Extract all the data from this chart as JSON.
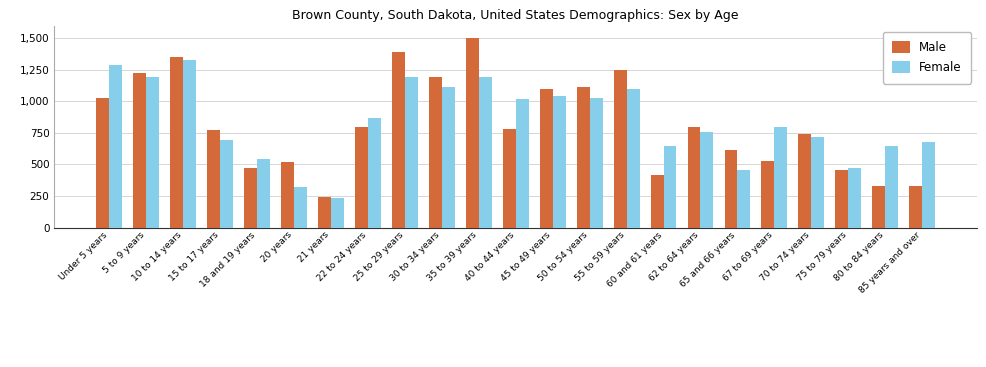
{
  "title": "Brown County, South Dakota, United States Demographics: Sex by Age",
  "categories": [
    "Under 5 years",
    "5 to 9 years",
    "10 to 14 years",
    "15 to 17 years",
    "18 and 19 years",
    "20 years",
    "21 years",
    "22 to 24 years",
    "25 to 29 years",
    "30 to 34 years",
    "35 to 39 years",
    "40 to 44 years",
    "45 to 49 years",
    "50 to 54 years",
    "55 to 59 years",
    "60 and 61 years",
    "62 to 64 years",
    "65 and 66 years",
    "67 to 69 years",
    "70 to 74 years",
    "75 to 79 years",
    "80 to 84 years",
    "85 years and over"
  ],
  "male": [
    1025,
    1225,
    1355,
    775,
    470,
    520,
    245,
    800,
    1390,
    1190,
    1500,
    785,
    1100,
    1115,
    1245,
    415,
    795,
    615,
    530,
    745,
    455,
    330,
    330
  ],
  "female": [
    1285,
    1190,
    1330,
    695,
    540,
    325,
    235,
    870,
    1195,
    1115,
    1195,
    1020,
    1045,
    1030,
    1095,
    650,
    755,
    460,
    800,
    715,
    475,
    650,
    680
  ],
  "male_color": "#d4693a",
  "female_color": "#87ceea",
  "bar_width": 0.35,
  "ylim": [
    0,
    1600
  ],
  "yticks": [
    0,
    250,
    500,
    750,
    1000,
    1250,
    1500
  ],
  "background_color": "#ffffff",
  "legend_labels": [
    "Male",
    "Female"
  ],
  "title_fontsize": 9,
  "tick_fontsize": 6.5,
  "ytick_fontsize": 7.5
}
